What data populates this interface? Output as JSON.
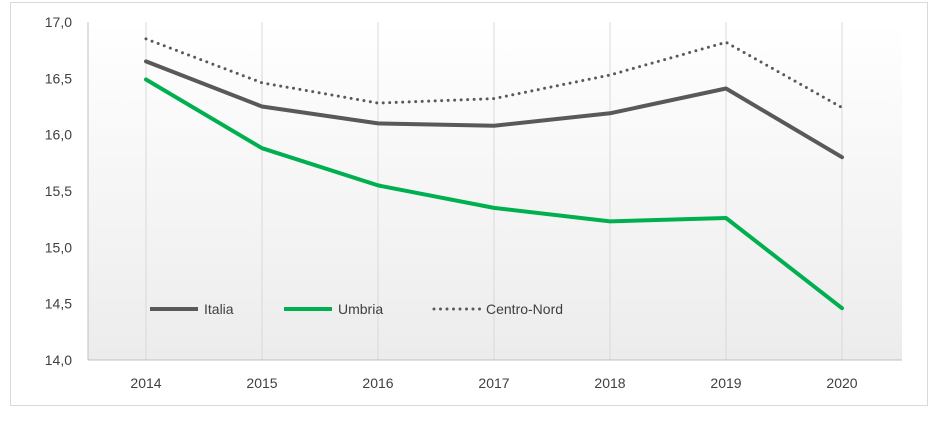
{
  "chart_data": {
    "type": "line",
    "title": "",
    "xlabel": "",
    "ylabel": "",
    "categories": [
      "2014",
      "2015",
      "2016",
      "2017",
      "2018",
      "2019",
      "2020"
    ],
    "ylim": [
      14.0,
      17.0
    ],
    "yticks": [
      "14,0",
      "14,5",
      "15,0",
      "15,5",
      "16,0",
      "16,5",
      "17,0"
    ],
    "grid": "vertical",
    "legend_position": "bottom-left inside",
    "series": [
      {
        "name": "Italia",
        "values": [
          16.65,
          16.25,
          16.1,
          16.08,
          16.19,
          16.41,
          15.8
        ],
        "color": "#595959",
        "style": "solid"
      },
      {
        "name": "Umbria",
        "values": [
          16.49,
          15.88,
          15.55,
          15.35,
          15.23,
          15.26,
          14.46
        ],
        "color": "#00b050",
        "style": "solid"
      },
      {
        "name": "Centro-Nord",
        "values": [
          16.85,
          16.46,
          16.28,
          16.32,
          16.53,
          16.82,
          16.24
        ],
        "color": "#595959",
        "style": "dotted"
      }
    ]
  }
}
